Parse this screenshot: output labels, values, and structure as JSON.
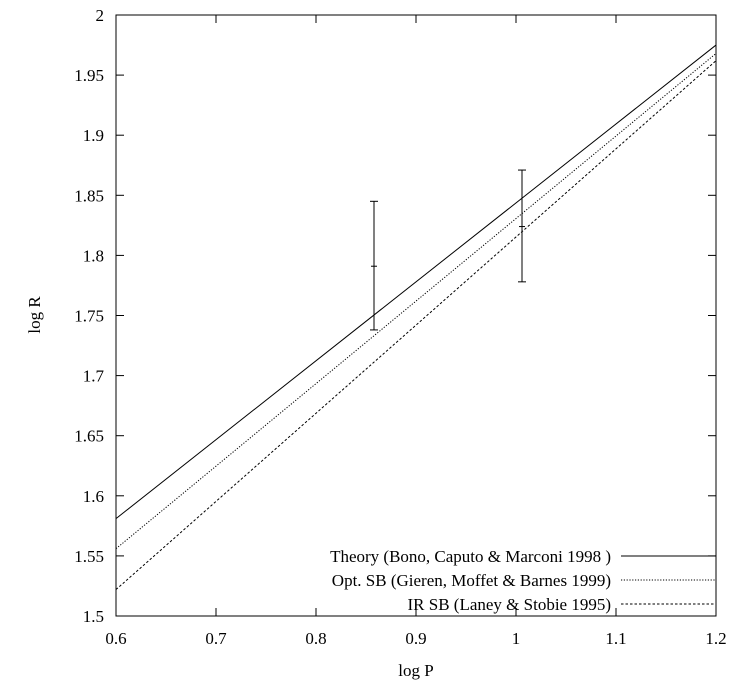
{
  "chart_data": {
    "type": "line",
    "xlabel": "log P",
    "ylabel": "log R",
    "xlim": [
      0.6,
      1.2
    ],
    "ylim": [
      1.5,
      2.0
    ],
    "xticks": [
      0.6,
      0.7,
      0.8,
      0.9,
      1.0,
      1.1,
      1.2
    ],
    "xtick_labels": [
      "0.6",
      "0.7",
      "0.8",
      "0.9",
      "1",
      "1.1",
      "1.2"
    ],
    "yticks": [
      1.5,
      1.55,
      1.6,
      1.65,
      1.7,
      1.75,
      1.8,
      1.85,
      1.9,
      1.95,
      2.0
    ],
    "ytick_labels": [
      "1.5",
      "1.55",
      "1.6",
      "1.65",
      "1.7",
      "1.75",
      "1.8",
      "1.85",
      "1.9",
      "1.95",
      "2"
    ],
    "grid": false,
    "legend_position": "bottom-right",
    "series": [
      {
        "name": "Theory (Bono, Caputo & Marconi 1998 )",
        "style": "solid",
        "x": [
          0.6,
          1.2
        ],
        "y": [
          1.581,
          1.975
        ]
      },
      {
        "name": "Opt. SB (Gieren, Moffet & Barnes 1999)",
        "style": "dotted",
        "x": [
          0.6,
          1.2
        ],
        "y": [
          1.556,
          1.968
        ]
      },
      {
        "name": "IR SB (Laney & Stobie 1995)",
        "style": "dashed",
        "x": [
          0.6,
          1.2
        ],
        "y": [
          1.522,
          1.962
        ]
      }
    ],
    "error_points": [
      {
        "x": 0.858,
        "y": 1.791,
        "ylow": 1.738,
        "yhigh": 1.845
      },
      {
        "x": 1.006,
        "y": 1.824,
        "ylow": 1.778,
        "yhigh": 1.871
      }
    ]
  }
}
